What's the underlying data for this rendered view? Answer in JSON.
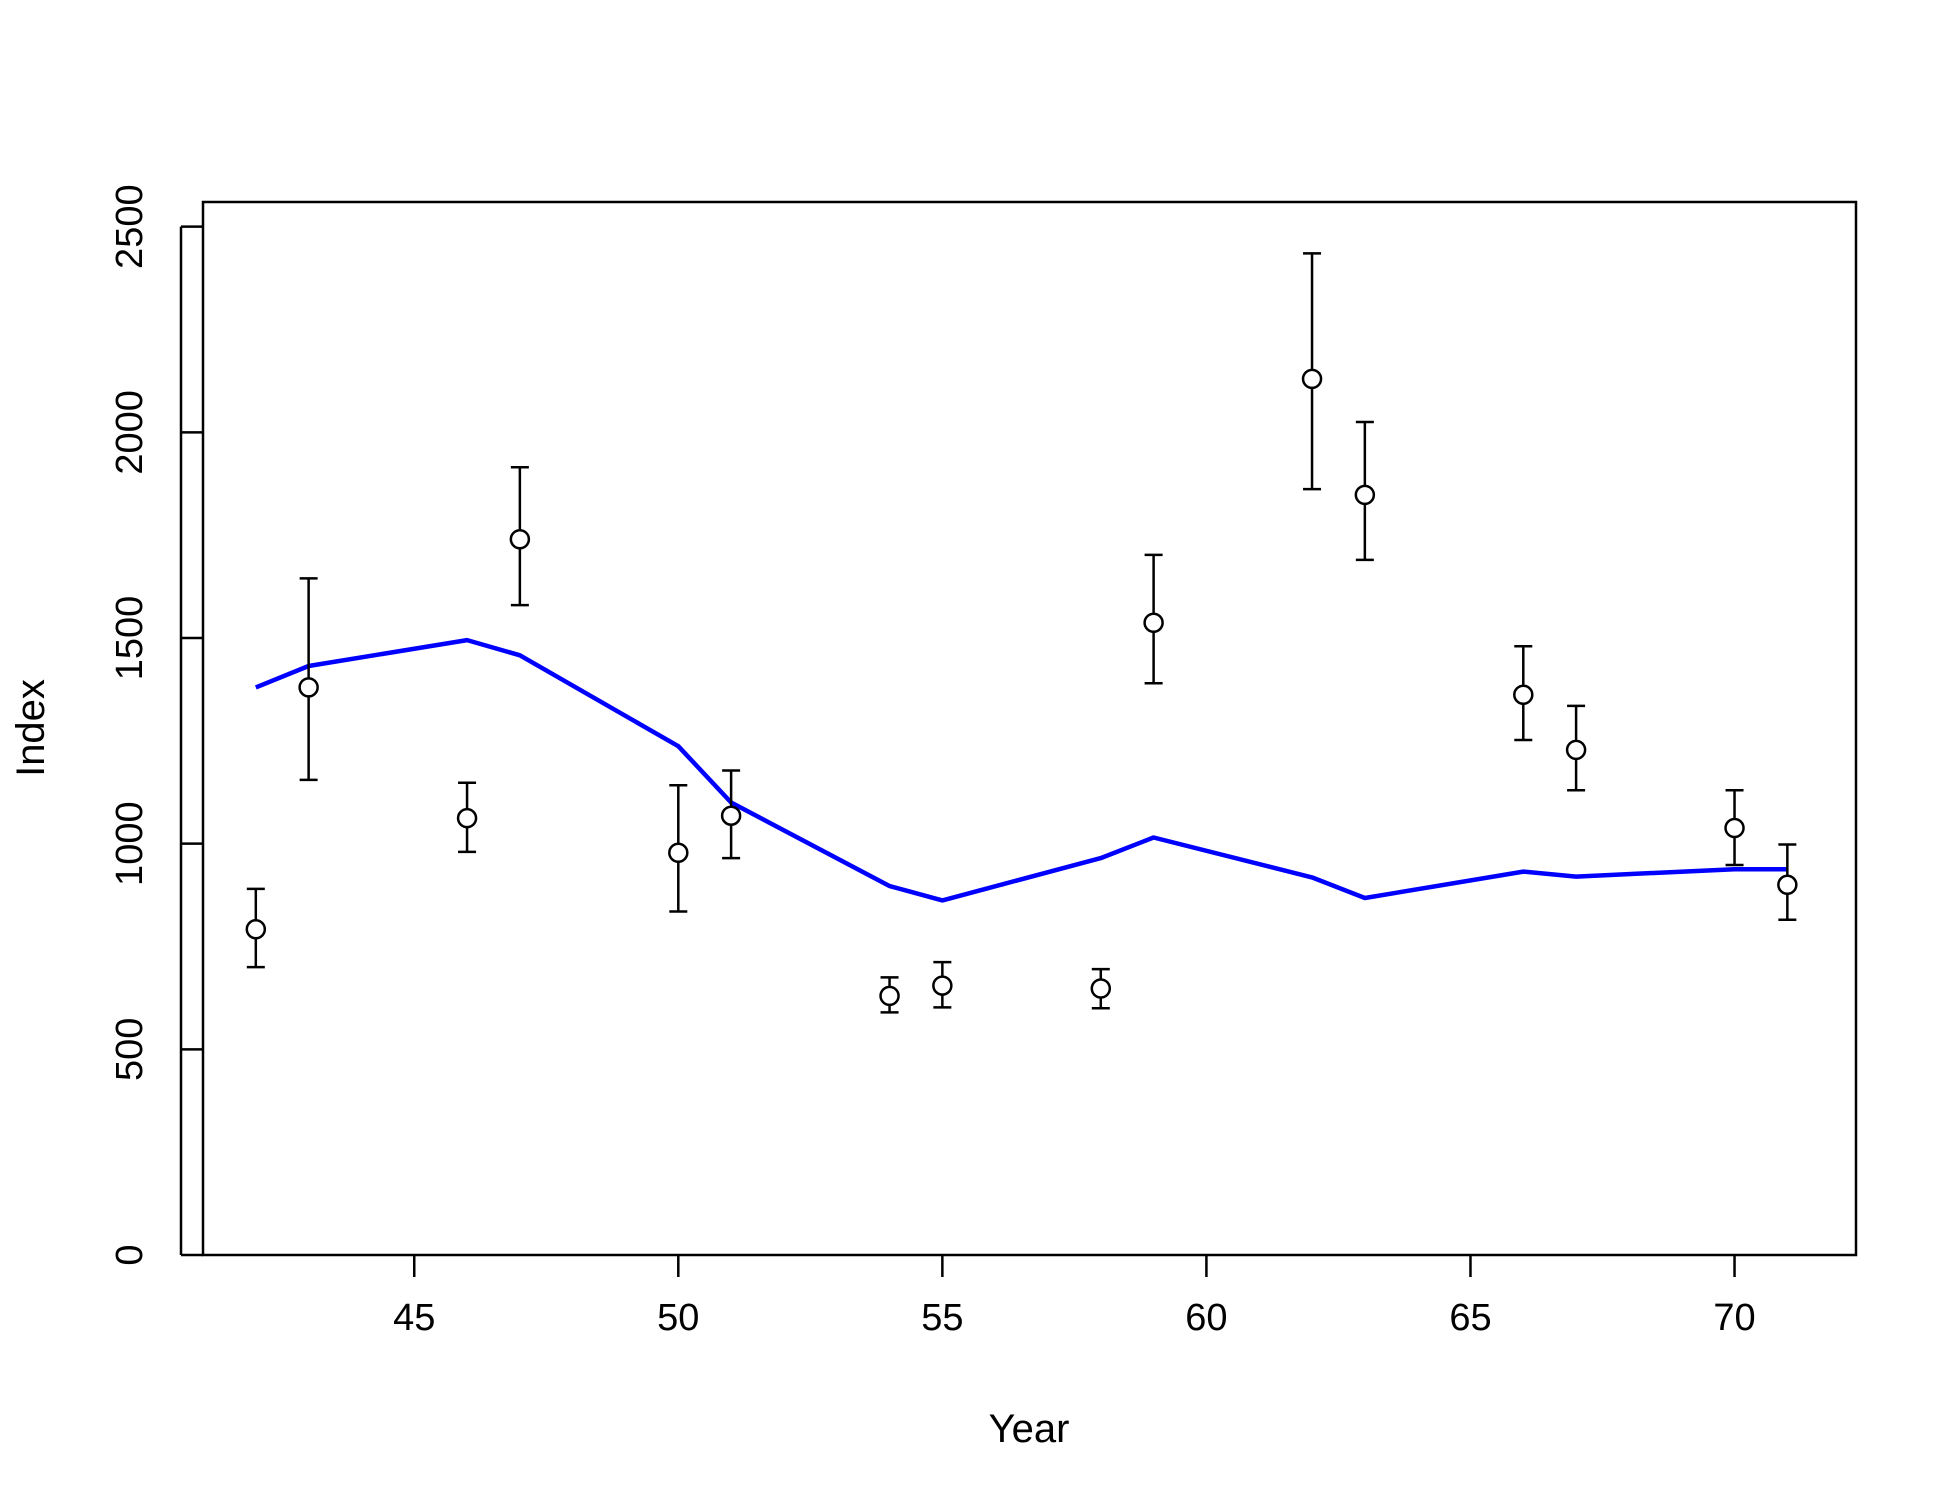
{
  "chart_data": {
    "type": "scatter",
    "title": "",
    "xlabel": "Year",
    "ylabel": "Index",
    "xlim": [
      41.0,
      72.3
    ],
    "ylim": [
      0,
      2560
    ],
    "x_ticks": [
      45,
      50,
      55,
      60,
      65,
      70
    ],
    "y_ticks": [
      0,
      500,
      1000,
      1500,
      2000,
      2500
    ],
    "grid": false,
    "legend": "none",
    "colors": {
      "observed": "#000000",
      "fitted": "#0000FF"
    },
    "observed": {
      "x": [
        42,
        43,
        46,
        47,
        50,
        51,
        54,
        55,
        58,
        59,
        62,
        63,
        66,
        67,
        70,
        71
      ],
      "y": [
        792,
        1380,
        1062,
        1740,
        978,
        1068,
        630,
        655,
        648,
        1537,
        2130,
        1848,
        1362,
        1228,
        1038,
        900
      ],
      "lower": [
        700,
        1155,
        980,
        1580,
        835,
        965,
        590,
        602,
        600,
        1390,
        1862,
        1690,
        1252,
        1130,
        948,
        815
      ],
      "upper": [
        890,
        1645,
        1148,
        1915,
        1142,
        1178,
        675,
        712,
        695,
        1702,
        2435,
        2025,
        1480,
        1335,
        1130,
        998
      ]
    },
    "fitted": {
      "x": [
        42,
        43,
        46,
        47,
        50,
        51,
        54,
        55,
        58,
        59,
        62,
        63,
        66,
        67,
        70,
        71
      ],
      "y": [
        1380,
        1432,
        1495,
        1458,
        1237,
        1100,
        897,
        862,
        965,
        1015,
        918,
        868,
        932,
        920,
        938,
        938
      ]
    }
  }
}
